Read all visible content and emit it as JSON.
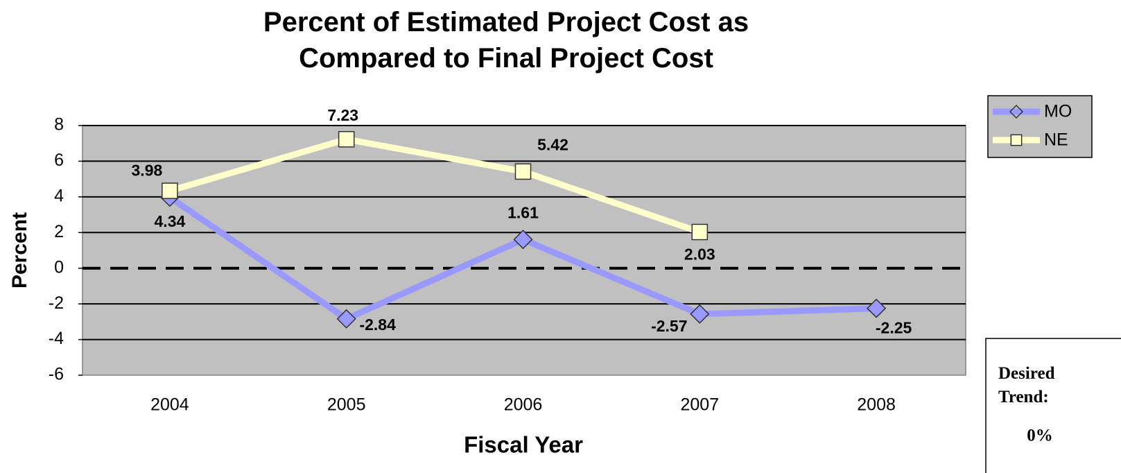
{
  "chart_data": {
    "type": "line",
    "title": "Percent of Estimated Project Cost as Compared to Final Project Cost",
    "x_label": "Fiscal Year",
    "y_label": "Percent",
    "categories": [
      "2004",
      "2005",
      "2006",
      "2007",
      "2008"
    ],
    "series": [
      {
        "name": "MO",
        "color": "#9999ff",
        "marker": "diamond",
        "values": [
          3.98,
          -2.84,
          1.61,
          -2.57,
          -2.25
        ]
      },
      {
        "name": "NE",
        "color": "#ffffcc",
        "marker": "square",
        "values": [
          4.34,
          7.23,
          5.42,
          2.03,
          null
        ]
      }
    ],
    "ylim": [
      -6,
      8
    ],
    "yticks": [
      -6,
      -4,
      -2,
      0,
      2,
      4,
      6,
      8
    ],
    "grid": true,
    "reference_line": 0,
    "legend": "right",
    "desired_trend_label": "Desired Trend:",
    "desired_trend_value": "0%"
  }
}
